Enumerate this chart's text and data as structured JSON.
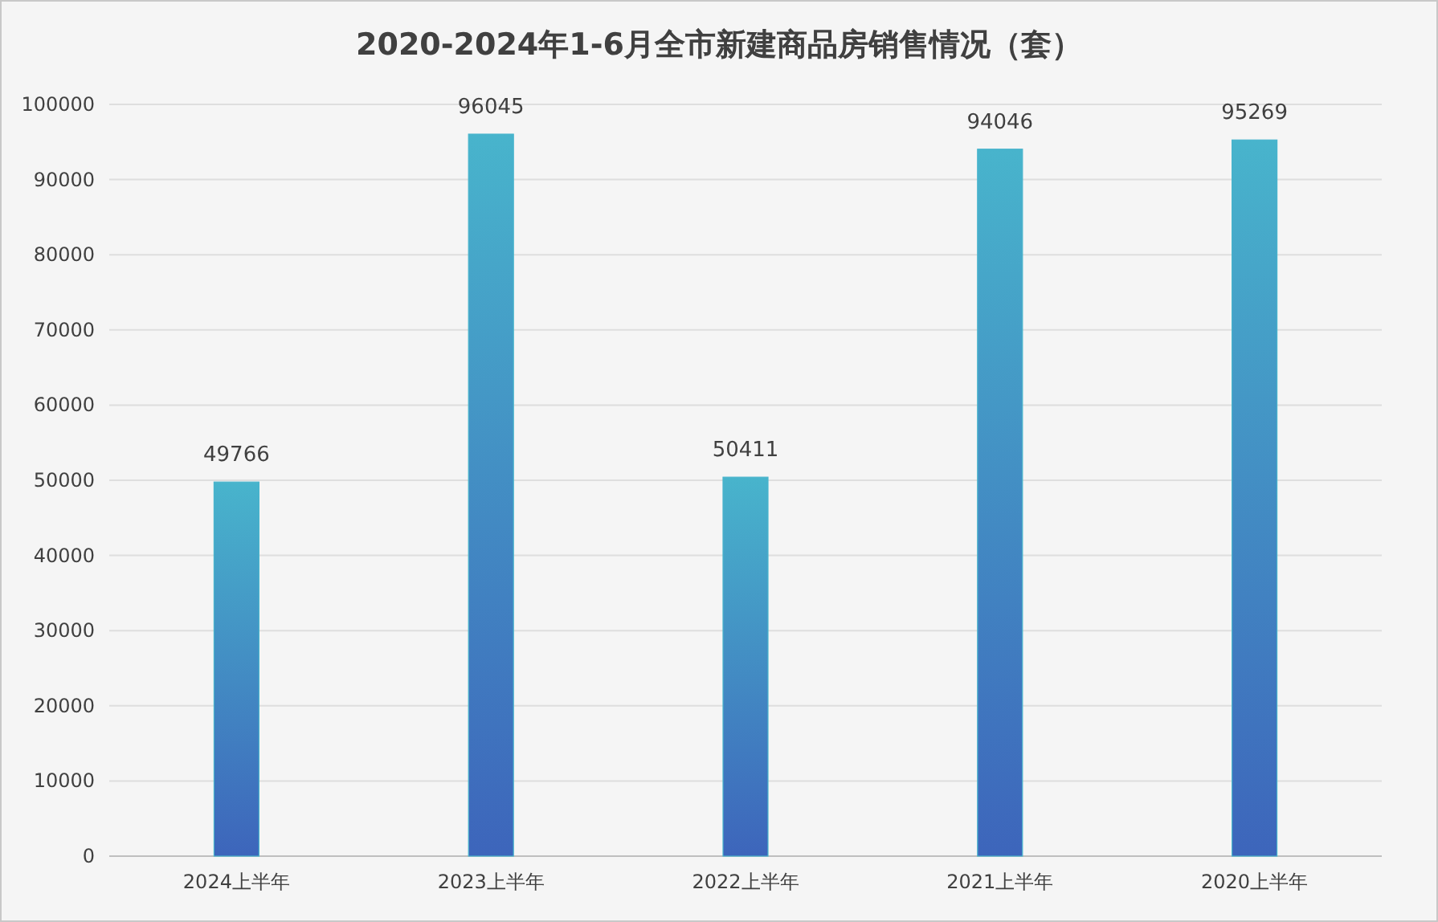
{
  "chart_data": {
    "type": "bar",
    "title": "2020-2024年1-6月全市新建商品房销售情况（套）",
    "categories": [
      "2024上半年",
      "2023上半年",
      "2022上半年",
      "2021上半年",
      "2020上半年"
    ],
    "values": [
      49766,
      96045,
      50411,
      94046,
      95269
    ],
    "color": "#48b4cc",
    "ylim": [
      0,
      100000
    ],
    "yticks": [
      0,
      10000,
      20000,
      30000,
      40000,
      50000,
      60000,
      70000,
      80000,
      90000,
      100000
    ],
    "grid": "y",
    "data_labels": true
  }
}
